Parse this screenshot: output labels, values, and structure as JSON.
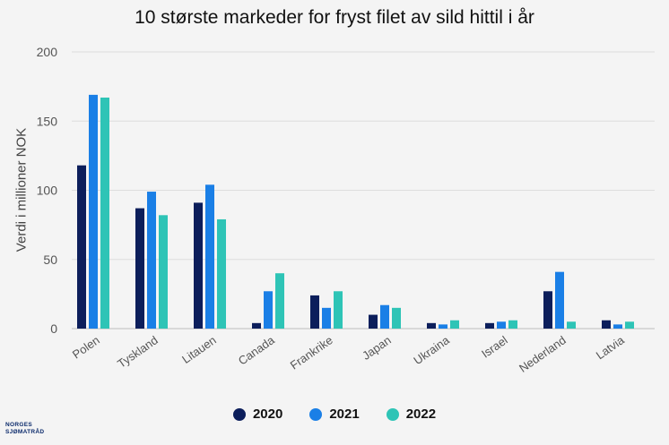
{
  "chart_data": {
    "type": "bar",
    "title": "10 største markeder for fryst filet av sild hittil i år",
    "ylabel": "Verdi i millioner NOK",
    "xlabel": "",
    "ylim": [
      0,
      200
    ],
    "yticks": [
      0,
      50,
      100,
      150,
      200
    ],
    "grid": true,
    "legend_position": "bottom",
    "categories": [
      "Polen",
      "Tyskland",
      "Litauen",
      "Canada",
      "Frankrike",
      "Japan",
      "Ukraina",
      "Israel",
      "Nederland",
      "Latvia"
    ],
    "series": [
      {
        "name": "2020",
        "color": "#0c1e5b",
        "values": [
          118,
          87,
          91,
          4,
          24,
          10,
          4,
          4,
          27,
          6
        ]
      },
      {
        "name": "2021",
        "color": "#1a7fe6",
        "values": [
          169,
          99,
          104,
          27,
          15,
          17,
          3,
          5,
          41,
          3
        ]
      },
      {
        "name": "2022",
        "color": "#2ec4b6",
        "values": [
          167,
          82,
          79,
          40,
          27,
          15,
          6,
          6,
          5,
          5
        ]
      }
    ]
  },
  "logo": {
    "line1": "NORGES",
    "line2": "SJØMATRÅD"
  }
}
